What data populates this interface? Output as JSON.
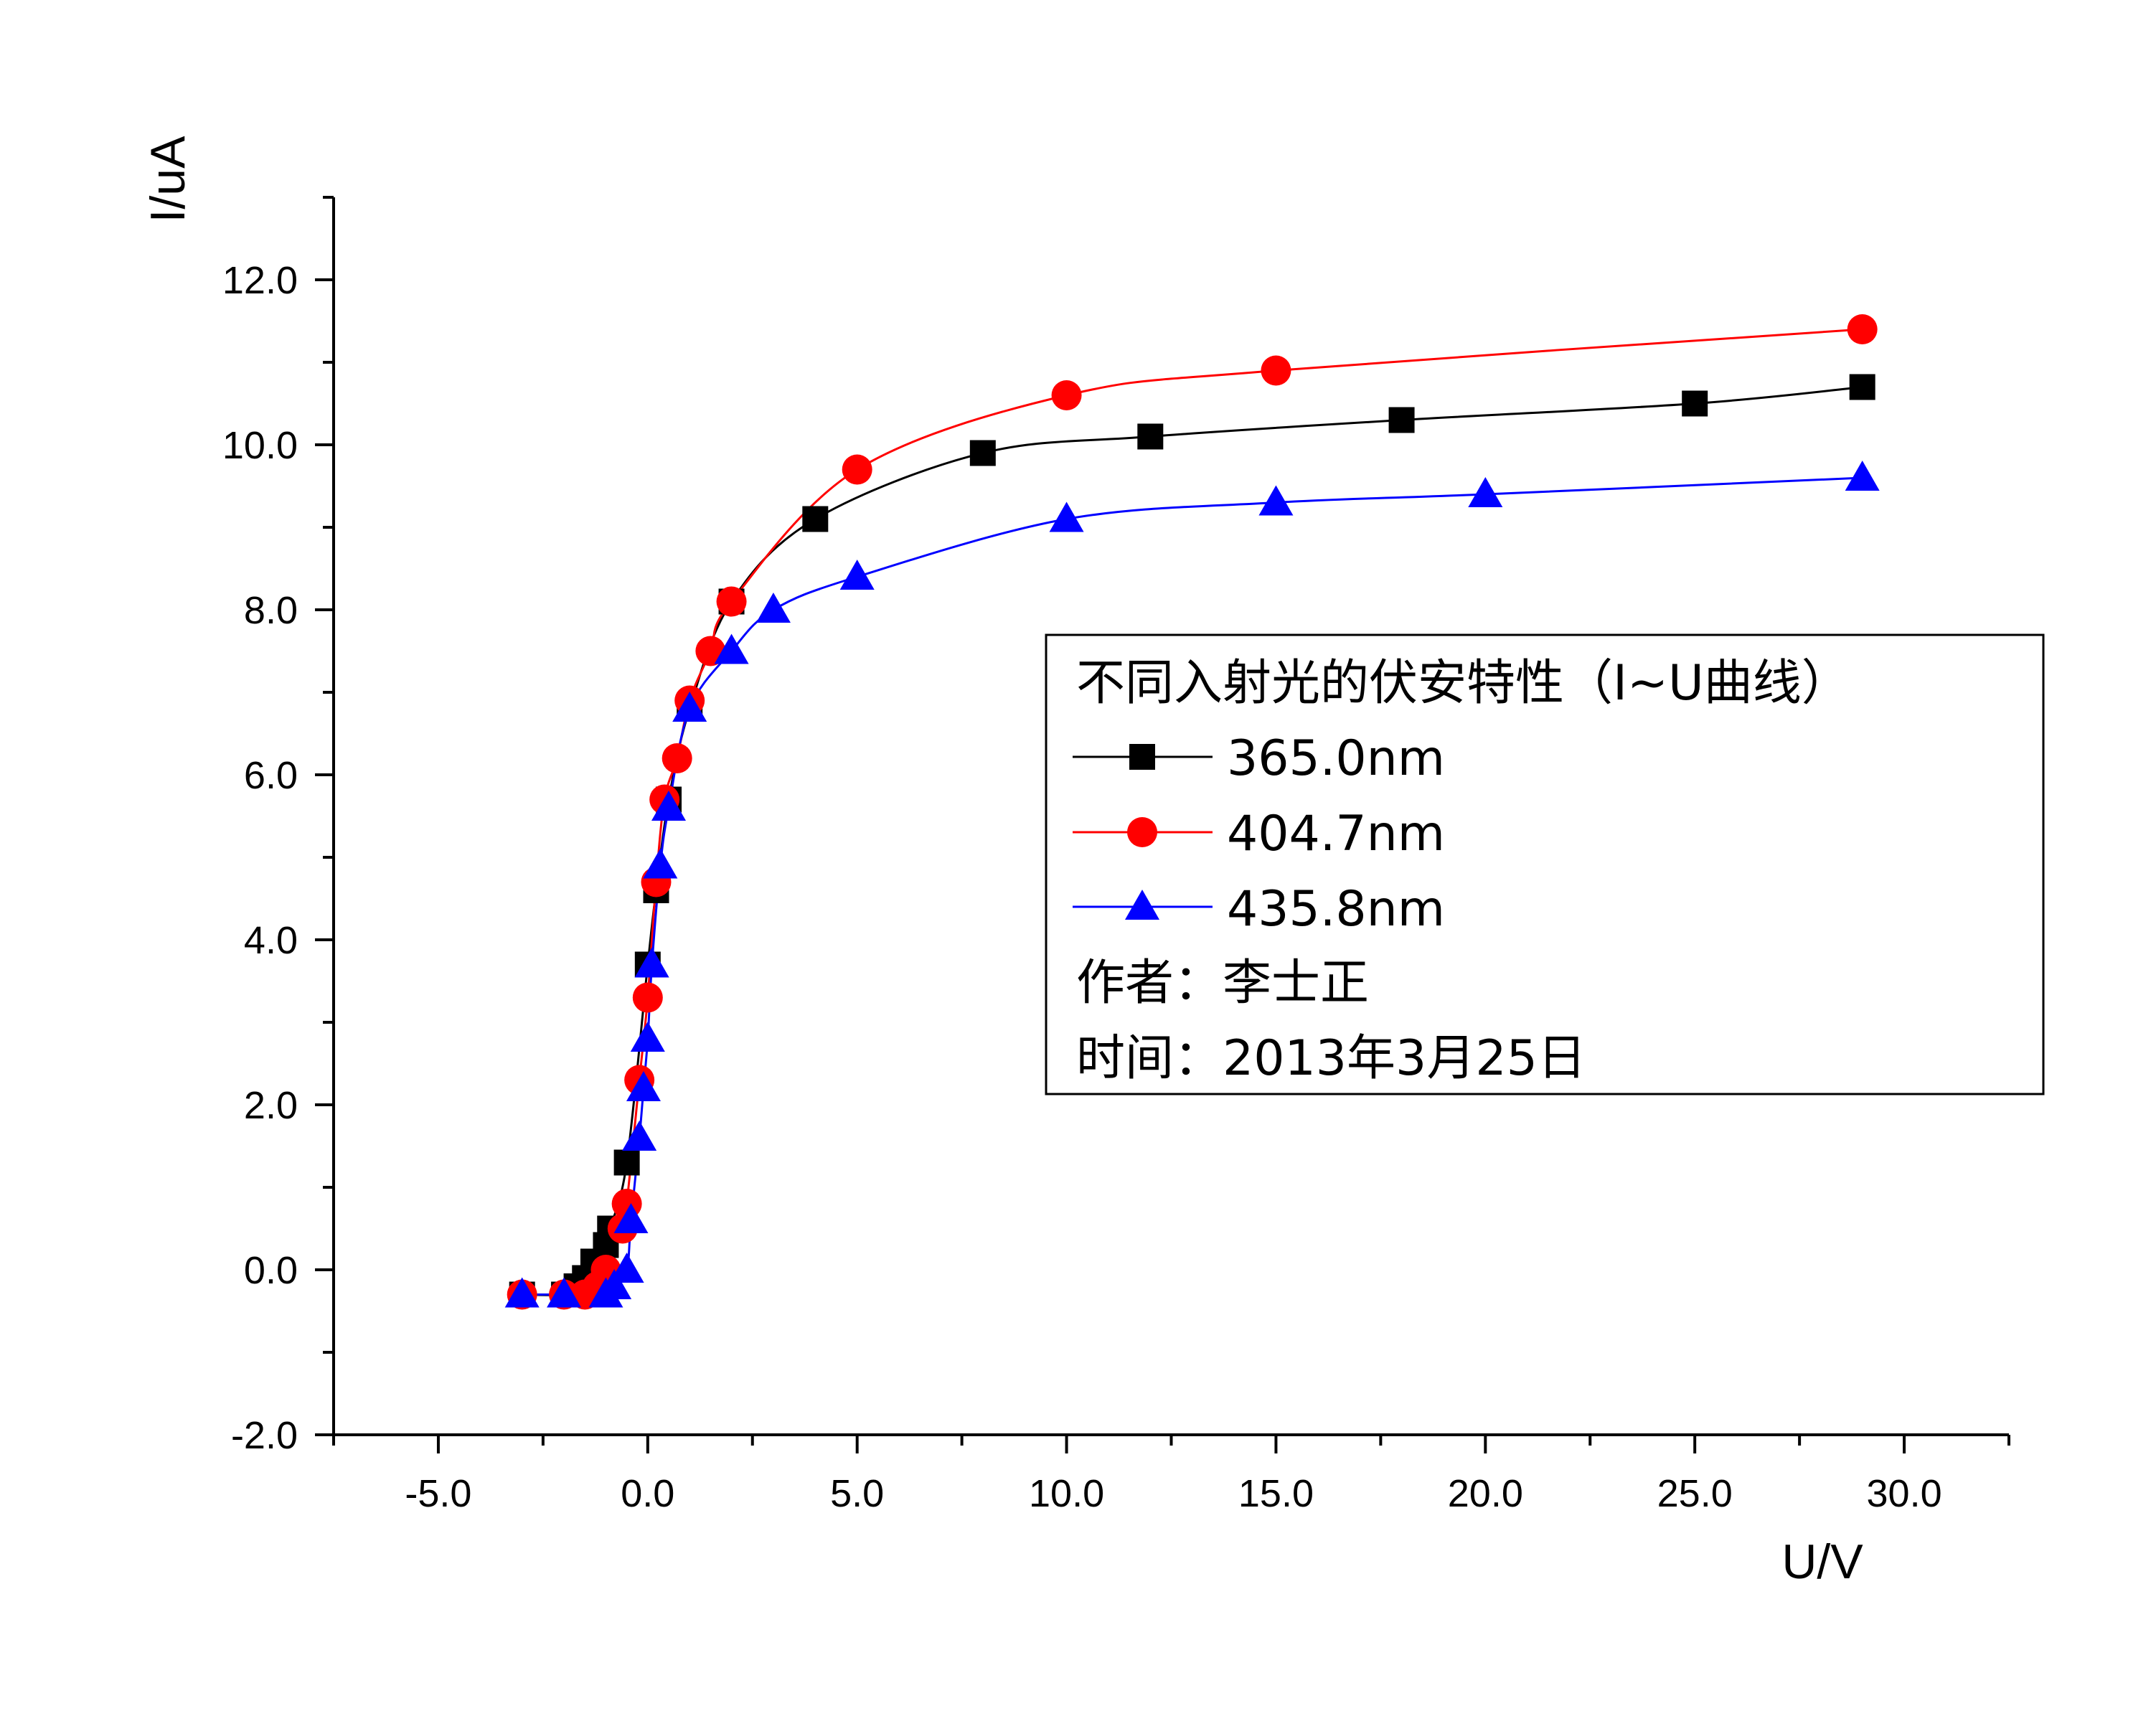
{
  "chart_data": {
    "type": "line",
    "xlabel": "U/V",
    "ylabel": "I/uA",
    "xlim": [
      -7.5,
      32.5
    ],
    "ylim": [
      -2.0,
      13.0
    ],
    "x_ticks": [
      -5.0,
      0.0,
      5.0,
      10.0,
      15.0,
      20.0,
      25.0,
      30.0
    ],
    "x_tick_labels": [
      "-5.0",
      "0.0",
      "5.0",
      "10.0",
      "15.0",
      "20.0",
      "25.0",
      "30.0"
    ],
    "y_ticks": [
      -2.0,
      0.0,
      2.0,
      4.0,
      6.0,
      8.0,
      10.0,
      12.0
    ],
    "y_tick_labels": [
      "-2.0",
      "0.0",
      "2.0",
      "4.0",
      "6.0",
      "8.0",
      "10.0",
      "12.0"
    ],
    "grid": false,
    "legend": {
      "placement": "right-middle",
      "title": "不同入射光的伏安特性（I~U曲线）",
      "notes": [
        "作者：李士正",
        "时间：2013年3月25日"
      ]
    },
    "series": [
      {
        "name": "365.0nm",
        "color": "#000000",
        "marker": "square",
        "x": [
          -3.0,
          -2.0,
          -1.7,
          -1.5,
          -1.3,
          -1.0,
          -0.9,
          -0.5,
          0.0,
          0.2,
          0.5,
          1.0,
          2.0,
          4.0,
          8.0,
          12.0,
          18.0,
          25.0,
          29.0
        ],
        "y": [
          -0.3,
          -0.3,
          -0.2,
          -0.1,
          0.1,
          0.3,
          0.5,
          1.3,
          3.7,
          4.6,
          5.7,
          6.8,
          8.1,
          9.1,
          9.9,
          10.1,
          10.3,
          10.5,
          10.7
        ]
      },
      {
        "name": "404.7nm",
        "color": "#ff0000",
        "marker": "circle",
        "x": [
          -3.0,
          -2.0,
          -1.5,
          -1.2,
          -1.0,
          -0.6,
          -0.5,
          -0.2,
          0.0,
          0.2,
          0.4,
          0.7,
          1.0,
          1.5,
          2.0,
          5.0,
          10.0,
          15.0,
          29.0
        ],
        "y": [
          -0.3,
          -0.3,
          -0.3,
          -0.2,
          0.0,
          0.5,
          0.8,
          2.3,
          3.3,
          4.7,
          5.7,
          6.2,
          6.9,
          7.5,
          8.1,
          9.7,
          10.6,
          10.9,
          11.4
        ]
      },
      {
        "name": "435.8nm",
        "color": "#0000ff",
        "marker": "triangle",
        "x": [
          -3.0,
          -2.0,
          -1.0,
          -0.8,
          -0.5,
          -0.4,
          -0.2,
          -0.1,
          0.0,
          0.1,
          0.3,
          0.5,
          1.0,
          2.0,
          3.0,
          5.0,
          10.0,
          15.0,
          20.0,
          29.0
        ],
        "y": [
          -0.3,
          -0.3,
          -0.3,
          -0.2,
          0.0,
          0.6,
          1.6,
          2.2,
          2.8,
          3.7,
          4.9,
          5.6,
          6.8,
          7.5,
          8.0,
          8.4,
          9.1,
          9.3,
          9.4,
          9.6
        ]
      }
    ]
  }
}
